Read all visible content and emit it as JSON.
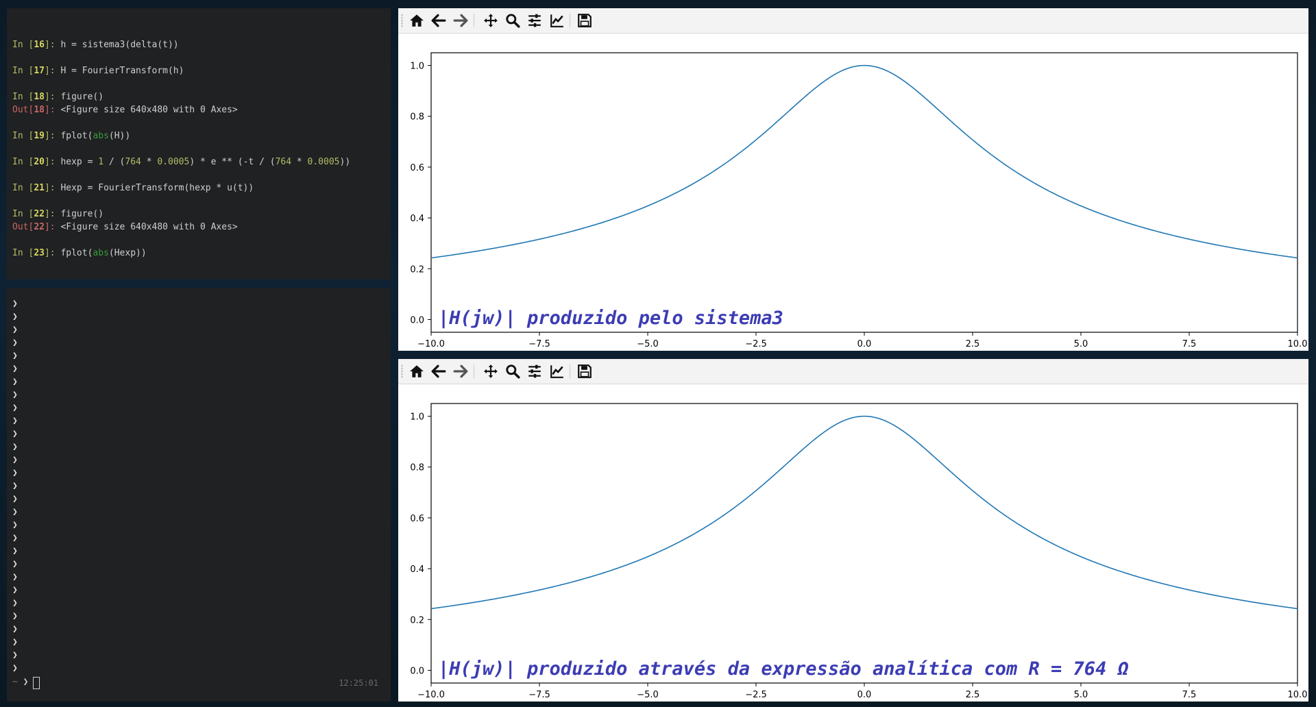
{
  "terminal_top": {
    "lines": [
      {
        "kind": "in",
        "num": "16",
        "code": "h = sistema3(delta(t))"
      },
      {
        "kind": "in",
        "num": "17",
        "code": "H = FourierTransform(h)"
      },
      {
        "kind": "in",
        "num": "18",
        "code": "figure()"
      },
      {
        "kind": "out",
        "num": "18",
        "code": "<Figure size 640x480 with 0 Axes>"
      },
      {
        "kind": "in",
        "num": "19",
        "code": "fplot(abs(H))"
      },
      {
        "kind": "in",
        "num": "20",
        "code": "hexp = 1 / (764 * 0.0005) * e ** (-t / (764 * 0.0005))"
      },
      {
        "kind": "in",
        "num": "21",
        "code": "Hexp = FourierTransform(hexp * u(t))"
      },
      {
        "kind": "in",
        "num": "22",
        "code": "figure()"
      },
      {
        "kind": "out",
        "num": "22",
        "code": "<Figure size 640x480 with 0 Axes>"
      },
      {
        "kind": "in",
        "num": "23",
        "code": "fplot(abs(Hexp))"
      }
    ],
    "in_label": "In ",
    "out_label": "Out"
  },
  "terminal_bottom": {
    "prompt_char": "❯",
    "empty_prompt_count": 29,
    "last_prompt_tilde": "~",
    "clock": "12:25:01"
  },
  "toolbar_icons": [
    "home-icon",
    "back-arrow-icon",
    "forward-arrow-icon",
    "pan-move-icon",
    "zoom-magnifier-icon",
    "configure-subplots-icon",
    "edit-axes-icon",
    "save-icon"
  ],
  "colors": {
    "line": "#1f77b4",
    "title": "#3c3cb4",
    "terminal_bg": "#1f2123"
  },
  "figures": [
    {
      "title": "|H(jw)| produzido pelo sistema3",
      "chart_data": {
        "type": "line",
        "function": "1/sqrt(1+(x/2.5)^2)",
        "x_range": [
          -10.0,
          10.0
        ],
        "ylim": [
          0.0,
          1.0
        ],
        "xticks": [
          "−10.0",
          "−7.5",
          "−5.0",
          "−2.5",
          "0.0",
          "2.5",
          "5.0",
          "7.5",
          "10.0"
        ],
        "yticks": [
          "0.0",
          "0.2",
          "0.4",
          "0.6",
          "0.8",
          "1.0"
        ],
        "series": [
          {
            "color": "#1f77b4"
          }
        ],
        "grid": false
      }
    },
    {
      "title": "|H(jw)| produzido através da expressão analítica com R = 764 Ω",
      "chart_data": {
        "type": "line",
        "function": "1/sqrt(1+(x/2.5)^2)",
        "x_range": [
          -10.0,
          10.0
        ],
        "ylim": [
          0.0,
          1.0
        ],
        "xticks": [
          "−10.0",
          "−7.5",
          "−5.0",
          "−2.5",
          "0.0",
          "2.5",
          "5.0",
          "7.5",
          "10.0"
        ],
        "yticks": [
          "0.0",
          "0.2",
          "0.4",
          "0.6",
          "0.8",
          "1.0"
        ],
        "series": [
          {
            "color": "#1f77b4"
          }
        ],
        "grid": false
      }
    }
  ]
}
